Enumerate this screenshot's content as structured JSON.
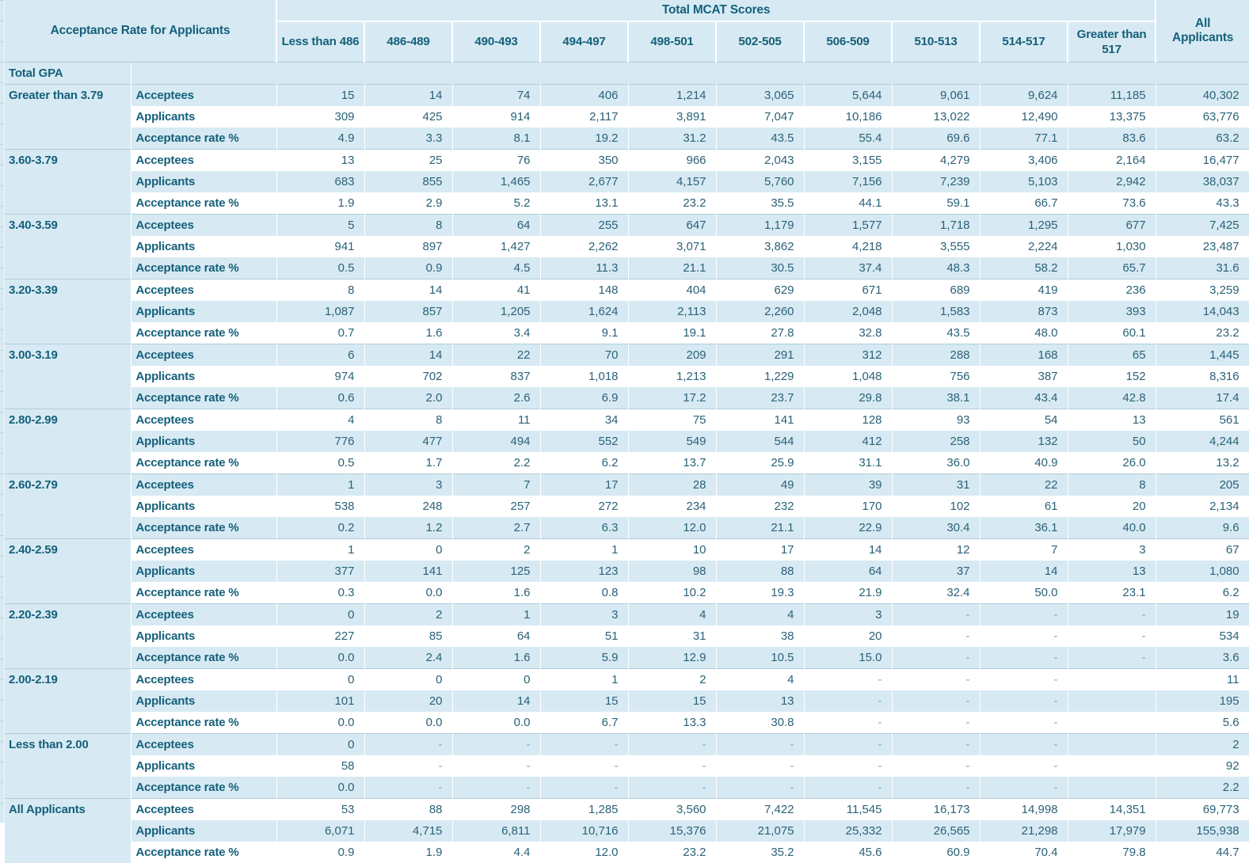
{
  "table": {
    "title": "Acceptance Rate for Applicants",
    "mcat_header": "Total MCAT Scores",
    "all_applicants_header": "All Applicants",
    "total_gpa_label": "Total GPA",
    "row_labels": [
      "Acceptees",
      "Applicants",
      "Acceptance rate %"
    ],
    "score_columns": [
      "Less than 486",
      "486-489",
      "490-493",
      "494-497",
      "498-501",
      "502-505",
      "506-509",
      "510-513",
      "514-517",
      "Greater than 517"
    ],
    "colors": {
      "band_blue": "#d7eaf3",
      "text_teal": "#15607b",
      "number_teal": "#2b6178",
      "dash": "#7cabbe",
      "group_line": "#aecddb",
      "separator": "#ffffff"
    },
    "groups": [
      {
        "gpa": "Greater than 3.79",
        "acceptees": [
          "15",
          "14",
          "74",
          "406",
          "1,214",
          "3,065",
          "5,644",
          "9,061",
          "9,624",
          "11,185",
          "40,302"
        ],
        "applicants": [
          "309",
          "425",
          "914",
          "2,117",
          "3,891",
          "7,047",
          "10,186",
          "13,022",
          "12,490",
          "13,375",
          "63,776"
        ],
        "rate": [
          "4.9",
          "3.3",
          "8.1",
          "19.2",
          "31.2",
          "43.5",
          "55.4",
          "69.6",
          "77.1",
          "83.6",
          "63.2"
        ]
      },
      {
        "gpa": "3.60-3.79",
        "acceptees": [
          "13",
          "25",
          "76",
          "350",
          "966",
          "2,043",
          "3,155",
          "4,279",
          "3,406",
          "2,164",
          "16,477"
        ],
        "applicants": [
          "683",
          "855",
          "1,465",
          "2,677",
          "4,157",
          "5,760",
          "7,156",
          "7,239",
          "5,103",
          "2,942",
          "38,037"
        ],
        "rate": [
          "1.9",
          "2.9",
          "5.2",
          "13.1",
          "23.2",
          "35.5",
          "44.1",
          "59.1",
          "66.7",
          "73.6",
          "43.3"
        ]
      },
      {
        "gpa": "3.40-3.59",
        "acceptees": [
          "5",
          "8",
          "64",
          "255",
          "647",
          "1,179",
          "1,577",
          "1,718",
          "1,295",
          "677",
          "7,425"
        ],
        "applicants": [
          "941",
          "897",
          "1,427",
          "2,262",
          "3,071",
          "3,862",
          "4,218",
          "3,555",
          "2,224",
          "1,030",
          "23,487"
        ],
        "rate": [
          "0.5",
          "0.9",
          "4.5",
          "11.3",
          "21.1",
          "30.5",
          "37.4",
          "48.3",
          "58.2",
          "65.7",
          "31.6"
        ]
      },
      {
        "gpa": "3.20-3.39",
        "acceptees": [
          "8",
          "14",
          "41",
          "148",
          "404",
          "629",
          "671",
          "689",
          "419",
          "236",
          "3,259"
        ],
        "applicants": [
          "1,087",
          "857",
          "1,205",
          "1,624",
          "2,113",
          "2,260",
          "2,048",
          "1,583",
          "873",
          "393",
          "14,043"
        ],
        "rate": [
          "0.7",
          "1.6",
          "3.4",
          "9.1",
          "19.1",
          "27.8",
          "32.8",
          "43.5",
          "48.0",
          "60.1",
          "23.2"
        ]
      },
      {
        "gpa": "3.00-3.19",
        "acceptees": [
          "6",
          "14",
          "22",
          "70",
          "209",
          "291",
          "312",
          "288",
          "168",
          "65",
          "1,445"
        ],
        "applicants": [
          "974",
          "702",
          "837",
          "1,018",
          "1,213",
          "1,229",
          "1,048",
          "756",
          "387",
          "152",
          "8,316"
        ],
        "rate": [
          "0.6",
          "2.0",
          "2.6",
          "6.9",
          "17.2",
          "23.7",
          "29.8",
          "38.1",
          "43.4",
          "42.8",
          "17.4"
        ]
      },
      {
        "gpa": "2.80-2.99",
        "acceptees": [
          "4",
          "8",
          "11",
          "34",
          "75",
          "141",
          "128",
          "93",
          "54",
          "13",
          "561"
        ],
        "applicants": [
          "776",
          "477",
          "494",
          "552",
          "549",
          "544",
          "412",
          "258",
          "132",
          "50",
          "4,244"
        ],
        "rate": [
          "0.5",
          "1.7",
          "2.2",
          "6.2",
          "13.7",
          "25.9",
          "31.1",
          "36.0",
          "40.9",
          "26.0",
          "13.2"
        ]
      },
      {
        "gpa": "2.60-2.79",
        "acceptees": [
          "1",
          "3",
          "7",
          "17",
          "28",
          "49",
          "39",
          "31",
          "22",
          "8",
          "205"
        ],
        "applicants": [
          "538",
          "248",
          "257",
          "272",
          "234",
          "232",
          "170",
          "102",
          "61",
          "20",
          "2,134"
        ],
        "rate": [
          "0.2",
          "1.2",
          "2.7",
          "6.3",
          "12.0",
          "21.1",
          "22.9",
          "30.4",
          "36.1",
          "40.0",
          "9.6"
        ]
      },
      {
        "gpa": "2.40-2.59",
        "acceptees": [
          "1",
          "0",
          "2",
          "1",
          "10",
          "17",
          "14",
          "12",
          "7",
          "3",
          "67"
        ],
        "applicants": [
          "377",
          "141",
          "125",
          "123",
          "98",
          "88",
          "64",
          "37",
          "14",
          "13",
          "1,080"
        ],
        "rate": [
          "0.3",
          "0.0",
          "1.6",
          "0.8",
          "10.2",
          "19.3",
          "21.9",
          "32.4",
          "50.0",
          "23.1",
          "6.2"
        ]
      },
      {
        "gpa": "2.20-2.39",
        "acceptees": [
          "0",
          "2",
          "1",
          "3",
          "4",
          "4",
          "3",
          "-",
          "-",
          "-",
          "19"
        ],
        "applicants": [
          "227",
          "85",
          "64",
          "51",
          "31",
          "38",
          "20",
          "-",
          "-",
          "-",
          "534"
        ],
        "rate": [
          "0.0",
          "2.4",
          "1.6",
          "5.9",
          "12.9",
          "10.5",
          "15.0",
          "-",
          "-",
          "-",
          "3.6"
        ]
      },
      {
        "gpa": "2.00-2.19",
        "acceptees": [
          "0",
          "0",
          "0",
          "1",
          "2",
          "4",
          "-",
          "-",
          "-",
          "",
          "11"
        ],
        "applicants": [
          "101",
          "20",
          "14",
          "15",
          "15",
          "13",
          "-",
          "-",
          "-",
          "",
          "195"
        ],
        "rate": [
          "0.0",
          "0.0",
          "0.0",
          "6.7",
          "13.3",
          "30.8",
          "-",
          "-",
          "-",
          "",
          "5.6"
        ]
      },
      {
        "gpa": "Less than 2.00",
        "acceptees": [
          "0",
          "-",
          "-",
          "-",
          "-",
          "-",
          "-",
          "-",
          "-",
          "",
          "2"
        ],
        "applicants": [
          "58",
          "-",
          "-",
          "-",
          "-",
          "-",
          "-",
          "-",
          "-",
          "",
          "92"
        ],
        "rate": [
          "0.0",
          "-",
          "-",
          "-",
          "-",
          "-",
          "-",
          "-",
          "-",
          "",
          "2.2"
        ]
      },
      {
        "gpa": "All Applicants",
        "acceptees": [
          "53",
          "88",
          "298",
          "1,285",
          "3,560",
          "7,422",
          "11,545",
          "16,173",
          "14,998",
          "14,351",
          "69,773"
        ],
        "applicants": [
          "6,071",
          "4,715",
          "6,811",
          "10,716",
          "15,376",
          "21,075",
          "25,332",
          "26,565",
          "21,298",
          "17,979",
          "155,938"
        ],
        "rate": [
          "0.9",
          "1.9",
          "4.4",
          "12.0",
          "23.2",
          "35.2",
          "45.6",
          "60.9",
          "70.4",
          "79.8",
          "44.7"
        ]
      }
    ]
  }
}
